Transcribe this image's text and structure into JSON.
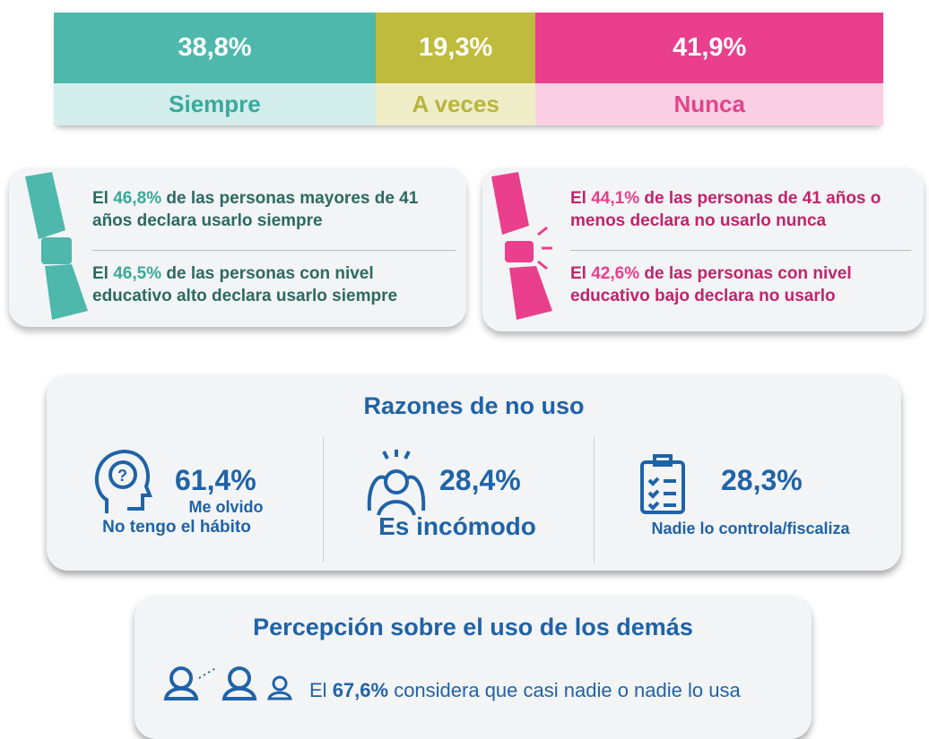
{
  "usage_bar": {
    "segments": [
      {
        "value": 38.8,
        "label": "38,8%",
        "name": "Siempre"
      },
      {
        "value": 19.3,
        "label": "19,3%",
        "name": "A veces"
      },
      {
        "value": 41.9,
        "label": "41,9%",
        "name": "Nunca"
      }
    ]
  },
  "cards": [
    {
      "items": [
        {
          "parts": [
            "El ",
            "46,8%",
            " de las personas mayores de 41 años declara usarlo siempre"
          ]
        },
        {
          "parts": [
            "El ",
            "46,5%",
            " de las personas con nivel educativo alto declara usarlo siempre"
          ]
        }
      ]
    },
    {
      "items": [
        {
          "parts": [
            "El ",
            "44,1%",
            " de las personas de 41 años o menos declara no usarlo nunca"
          ]
        },
        {
          "parts": [
            "El ",
            "42,6%",
            " de las personas con nivel educativo bajo declara no usarlo"
          ]
        }
      ]
    }
  ],
  "reasons": {
    "title": "Razones de no uso",
    "items": [
      {
        "value": "61,4%",
        "lines": [
          "Me olvido",
          "No tengo el hábito"
        ]
      },
      {
        "value": "28,4%",
        "lines": [
          "Es incómodo"
        ]
      },
      {
        "value": "28,3%",
        "lines": [
          "Nadie lo controla/fiscaliza"
        ]
      }
    ]
  },
  "perception": {
    "title": "Percepción sobre el uso de los demás",
    "parts": [
      "El ",
      "67,6%",
      " considera que casi nadie o nadie lo usa"
    ]
  }
}
